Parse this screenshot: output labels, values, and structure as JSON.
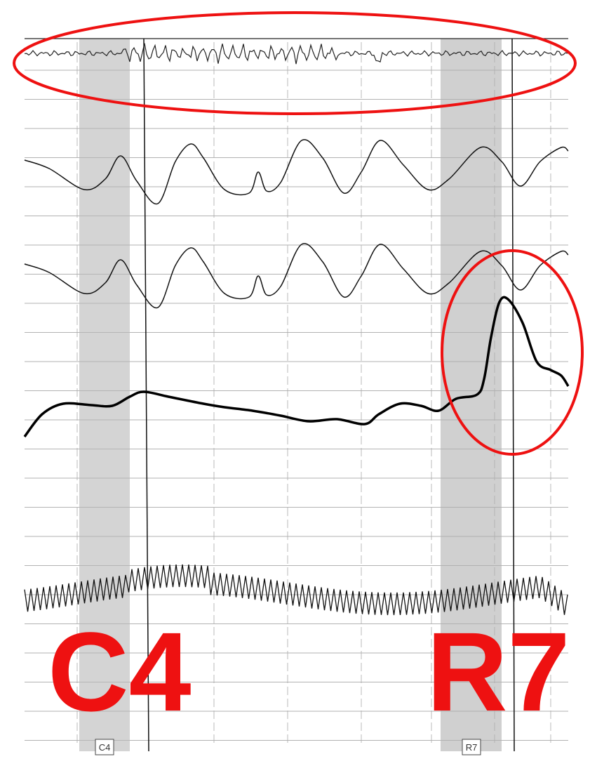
{
  "labels": [
    {
      "large": "C4",
      "box": "C4"
    },
    {
      "large": "R7",
      "box": "R7"
    }
  ]
}
